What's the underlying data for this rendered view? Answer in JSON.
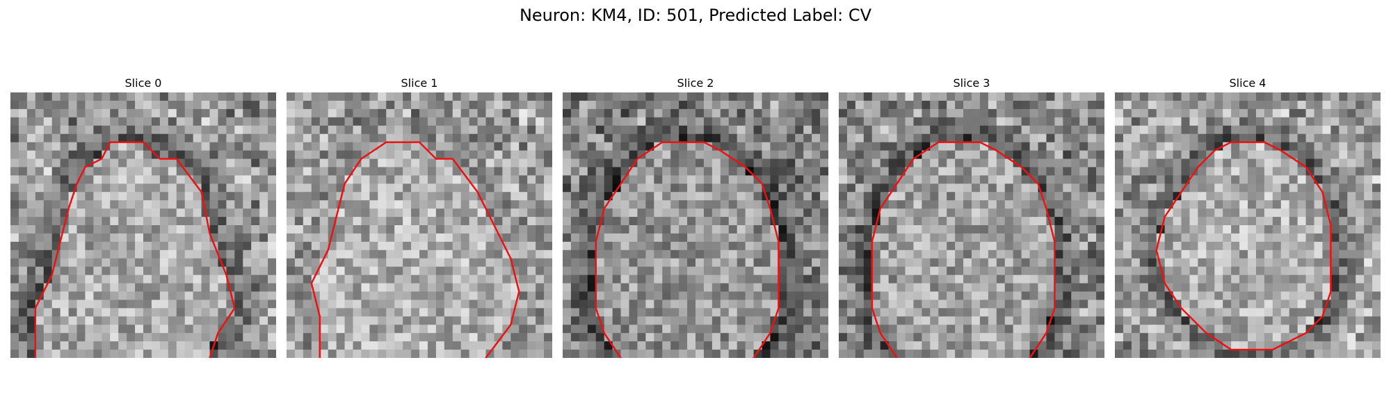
{
  "figure": {
    "title": "Neuron: KM4, ID: 501, Predicted Label: CV"
  },
  "contour_color": "#ee1111",
  "slices": [
    {
      "title": "Slice 0",
      "contour": [
        [
          9,
          1
        ],
        [
          13,
          1
        ],
        [
          15,
          3
        ],
        [
          17,
          3
        ],
        [
          20,
          7
        ],
        [
          21,
          12
        ],
        [
          23,
          17
        ],
        [
          24,
          21
        ],
        [
          22,
          24
        ],
        [
          21,
          27
        ],
        [
          18,
          32
        ],
        [
          13,
          35
        ],
        [
          8,
          35
        ],
        [
          6,
          33
        ],
        [
          3,
          31
        ],
        [
          2,
          29
        ],
        [
          0,
          27
        ],
        [
          0,
          21
        ],
        [
          2,
          17
        ],
        [
          3,
          13
        ],
        [
          4,
          9
        ],
        [
          5,
          6
        ],
        [
          6,
          4
        ],
        [
          8,
          3
        ]
      ],
      "seed": 11,
      "base": 145,
      "dark_ring": true
    },
    {
      "title": "Slice 1",
      "contour": [
        [
          9,
          1
        ],
        [
          13,
          1
        ],
        [
          15,
          3
        ],
        [
          17,
          3
        ],
        [
          20,
          7
        ],
        [
          22,
          11
        ],
        [
          24,
          15
        ],
        [
          25,
          19
        ],
        [
          24,
          23
        ],
        [
          21,
          27
        ],
        [
          18,
          31
        ],
        [
          13,
          34
        ],
        [
          8,
          34
        ],
        [
          5,
          32
        ],
        [
          3,
          30
        ],
        [
          1,
          27
        ],
        [
          1,
          22
        ],
        [
          0,
          18
        ],
        [
          2,
          14
        ],
        [
          3,
          10
        ],
        [
          4,
          6
        ],
        [
          6,
          3
        ]
      ],
      "seed": 23,
      "base": 150,
      "dark_ring": false
    },
    {
      "title": "Slice 2",
      "contour": [
        [
          8,
          1
        ],
        [
          13,
          1
        ],
        [
          15,
          2
        ],
        [
          18,
          4
        ],
        [
          20,
          6
        ],
        [
          21,
          9
        ],
        [
          22,
          13
        ],
        [
          22,
          17
        ],
        [
          22,
          21
        ],
        [
          21,
          24
        ],
        [
          19,
          27
        ],
        [
          16,
          29
        ],
        [
          13,
          30
        ],
        [
          8,
          30
        ],
        [
          5,
          29
        ],
        [
          3,
          27
        ],
        [
          1,
          24
        ],
        [
          0,
          21
        ],
        [
          0,
          17
        ],
        [
          0,
          13
        ],
        [
          1,
          9
        ],
        [
          3,
          6
        ],
        [
          5,
          3
        ]
      ],
      "seed": 37,
      "base": 125,
      "dark_ring": true
    },
    {
      "title": "Slice 3",
      "contour": [
        [
          8,
          1
        ],
        [
          13,
          1
        ],
        [
          15,
          2
        ],
        [
          18,
          4
        ],
        [
          20,
          6
        ],
        [
          21,
          9
        ],
        [
          22,
          13
        ],
        [
          22,
          17
        ],
        [
          22,
          21
        ],
        [
          21,
          24
        ],
        [
          19,
          27
        ],
        [
          16,
          29
        ],
        [
          13,
          30
        ],
        [
          8,
          30
        ],
        [
          5,
          29
        ],
        [
          3,
          27
        ],
        [
          1,
          24
        ],
        [
          0,
          21
        ],
        [
          0,
          17
        ],
        [
          0,
          13
        ],
        [
          1,
          9
        ],
        [
          3,
          6
        ],
        [
          5,
          3
        ]
      ],
      "seed": 41,
      "base": 135,
      "dark_ring": true
    },
    {
      "title": "Slice 4",
      "contour": [
        [
          9,
          2
        ],
        [
          13,
          2
        ],
        [
          15,
          3
        ],
        [
          18,
          5
        ],
        [
          20,
          8
        ],
        [
          21,
          12
        ],
        [
          21,
          16
        ],
        [
          21,
          20
        ],
        [
          20,
          23
        ],
        [
          18,
          25
        ],
        [
          14,
          27
        ],
        [
          9,
          27
        ],
        [
          6,
          25
        ],
        [
          3,
          22
        ],
        [
          1,
          19
        ],
        [
          0,
          15
        ],
        [
          1,
          11
        ],
        [
          3,
          8
        ],
        [
          5,
          5
        ],
        [
          7,
          3
        ]
      ],
      "seed": 53,
      "base": 150,
      "dark_ring": true
    }
  ]
}
